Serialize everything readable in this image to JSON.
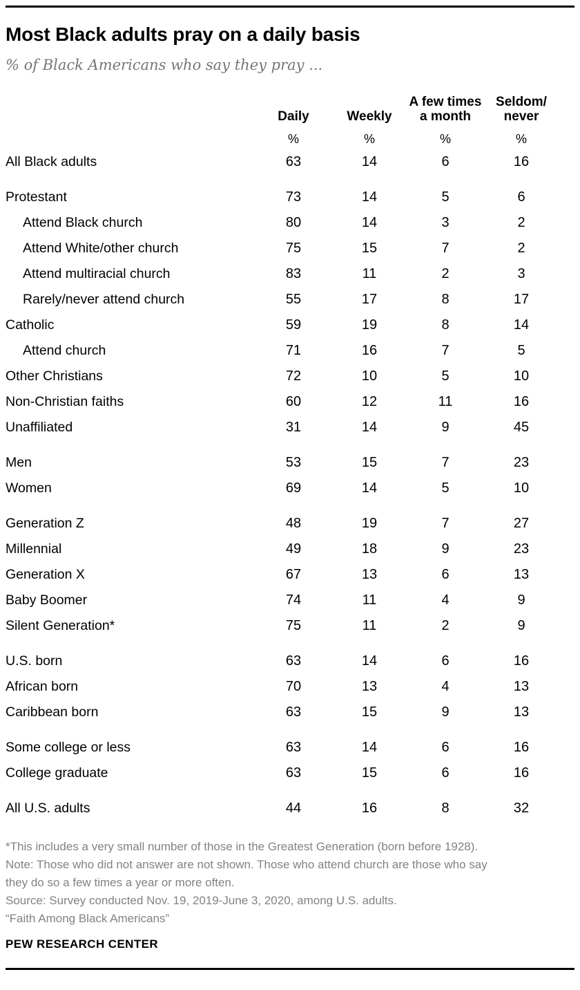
{
  "page": {
    "title": "Most Black adults pray on a daily basis",
    "subtitle": "% of Black Americans who say they pray ..."
  },
  "table": {
    "column_headers": [
      "Daily",
      "Weekly",
      "A few times\na month",
      "Seldom/\nnever"
    ],
    "unit_row": [
      "%",
      "%",
      "%",
      "%"
    ]
  },
  "chart_data": {
    "type": "table",
    "title": "Most Black adults pray on a daily basis",
    "subtitle": "% of Black Americans who say they pray ...",
    "columns": [
      "Daily",
      "Weekly",
      "A few times a month",
      "Seldom/never"
    ],
    "unit": "%",
    "rows": [
      {
        "label": "All Black adults",
        "indent": false,
        "group_start": false,
        "values": [
          63,
          14,
          6,
          16
        ]
      },
      {
        "label": "Protestant",
        "indent": false,
        "group_start": true,
        "values": [
          73,
          14,
          5,
          6
        ]
      },
      {
        "label": "Attend Black church",
        "indent": true,
        "group_start": false,
        "values": [
          80,
          14,
          3,
          2
        ]
      },
      {
        "label": "Attend White/other church",
        "indent": true,
        "group_start": false,
        "values": [
          75,
          15,
          7,
          2
        ]
      },
      {
        "label": "Attend multiracial church",
        "indent": true,
        "group_start": false,
        "values": [
          83,
          11,
          2,
          3
        ]
      },
      {
        "label": "Rarely/never attend church",
        "indent": true,
        "group_start": false,
        "values": [
          55,
          17,
          8,
          17
        ]
      },
      {
        "label": "Catholic",
        "indent": false,
        "group_start": false,
        "values": [
          59,
          19,
          8,
          14
        ]
      },
      {
        "label": "Attend church",
        "indent": true,
        "group_start": false,
        "values": [
          71,
          16,
          7,
          5
        ]
      },
      {
        "label": "Other Christians",
        "indent": false,
        "group_start": false,
        "values": [
          72,
          10,
          5,
          10
        ]
      },
      {
        "label": "Non-Christian faiths",
        "indent": false,
        "group_start": false,
        "values": [
          60,
          12,
          11,
          16
        ]
      },
      {
        "label": "Unaffiliated",
        "indent": false,
        "group_start": false,
        "values": [
          31,
          14,
          9,
          45
        ]
      },
      {
        "label": "Men",
        "indent": false,
        "group_start": true,
        "values": [
          53,
          15,
          7,
          23
        ]
      },
      {
        "label": "Women",
        "indent": false,
        "group_start": false,
        "values": [
          69,
          14,
          5,
          10
        ]
      },
      {
        "label": "Generation Z",
        "indent": false,
        "group_start": true,
        "values": [
          48,
          19,
          7,
          27
        ]
      },
      {
        "label": "Millennial",
        "indent": false,
        "group_start": false,
        "values": [
          49,
          18,
          9,
          23
        ]
      },
      {
        "label": "Generation X",
        "indent": false,
        "group_start": false,
        "values": [
          67,
          13,
          6,
          13
        ]
      },
      {
        "label": "Baby Boomer",
        "indent": false,
        "group_start": false,
        "values": [
          74,
          11,
          4,
          9
        ]
      },
      {
        "label": "Silent Generation*",
        "indent": false,
        "group_start": false,
        "values": [
          75,
          11,
          2,
          9
        ]
      },
      {
        "label": "U.S. born",
        "indent": false,
        "group_start": true,
        "values": [
          63,
          14,
          6,
          16
        ]
      },
      {
        "label": "African born",
        "indent": false,
        "group_start": false,
        "values": [
          70,
          13,
          4,
          13
        ]
      },
      {
        "label": "Caribbean born",
        "indent": false,
        "group_start": false,
        "values": [
          63,
          15,
          9,
          13
        ]
      },
      {
        "label": "Some college or less",
        "indent": false,
        "group_start": true,
        "values": [
          63,
          14,
          6,
          16
        ]
      },
      {
        "label": "College graduate",
        "indent": false,
        "group_start": false,
        "values": [
          63,
          15,
          6,
          16
        ]
      },
      {
        "label": "All U.S. adults",
        "indent": false,
        "group_start": true,
        "values": [
          44,
          16,
          8,
          32
        ]
      }
    ]
  },
  "footer": {
    "footnote": "*This includes a very small number of those in the Greatest Generation (born before 1928).",
    "note": "Note: Those who did not answer are not shown. Those who attend church are those who say they do so a few times a year or more often.",
    "source": "Source: Survey conducted Nov. 19, 2019-June 3, 2020, among U.S. adults.",
    "report_title": "“Faith Among Black Americans”",
    "brand": "PEW RESEARCH CENTER"
  }
}
